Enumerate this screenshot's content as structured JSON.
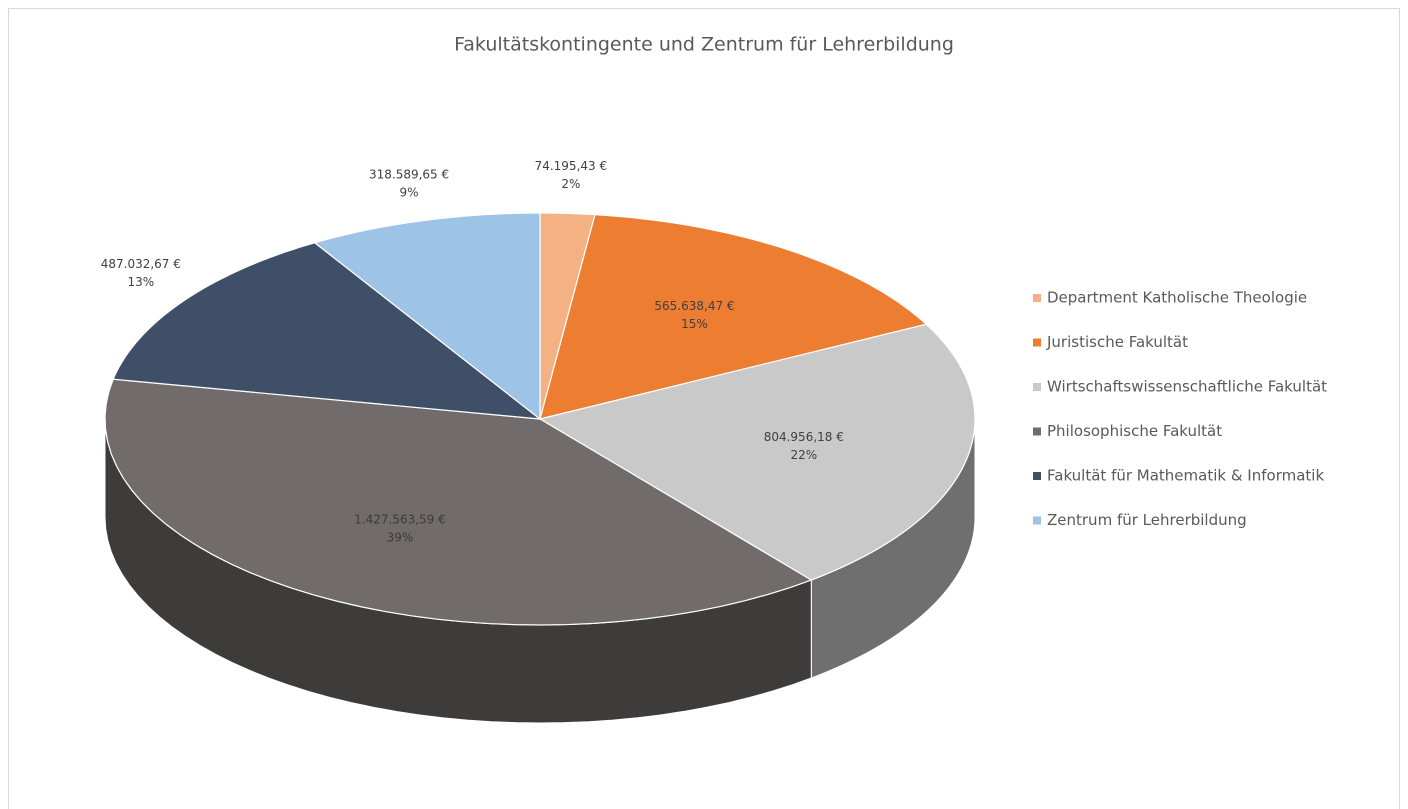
{
  "chart_data": {
    "type": "pie",
    "title": "Fakultätskontingente und Zentrum für Lehrerbildung",
    "categories": [
      "Department Katholische Theologie",
      "Juristische Fakultät",
      "Wirtschaftswissenschaftliche Fakultät",
      "Philosophische Fakultät",
      "Fakultät für Mathematik & Informatik",
      "Zentrum für Lehrerbildung"
    ],
    "values": [
      74195.43,
      565638.47,
      804956.18,
      1427563.59,
      487032.67,
      318589.65
    ],
    "value_labels": [
      "74.195,43 €",
      "565.638,47 €",
      "804.956,18 €",
      "1.427.563,59 €",
      "487.032,67 €",
      "318.589,65 €"
    ],
    "percentages": [
      2,
      15,
      22,
      39,
      13,
      9
    ],
    "percentage_labels": [
      "2%",
      "15%",
      "22%",
      "39%",
      "13%",
      "9%"
    ],
    "colors": [
      "#f4b183",
      "#ed7d31",
      "#cac9c9",
      "#716c6b",
      "#3f4f68",
      "#9dc3e6"
    ],
    "legend": "right"
  }
}
